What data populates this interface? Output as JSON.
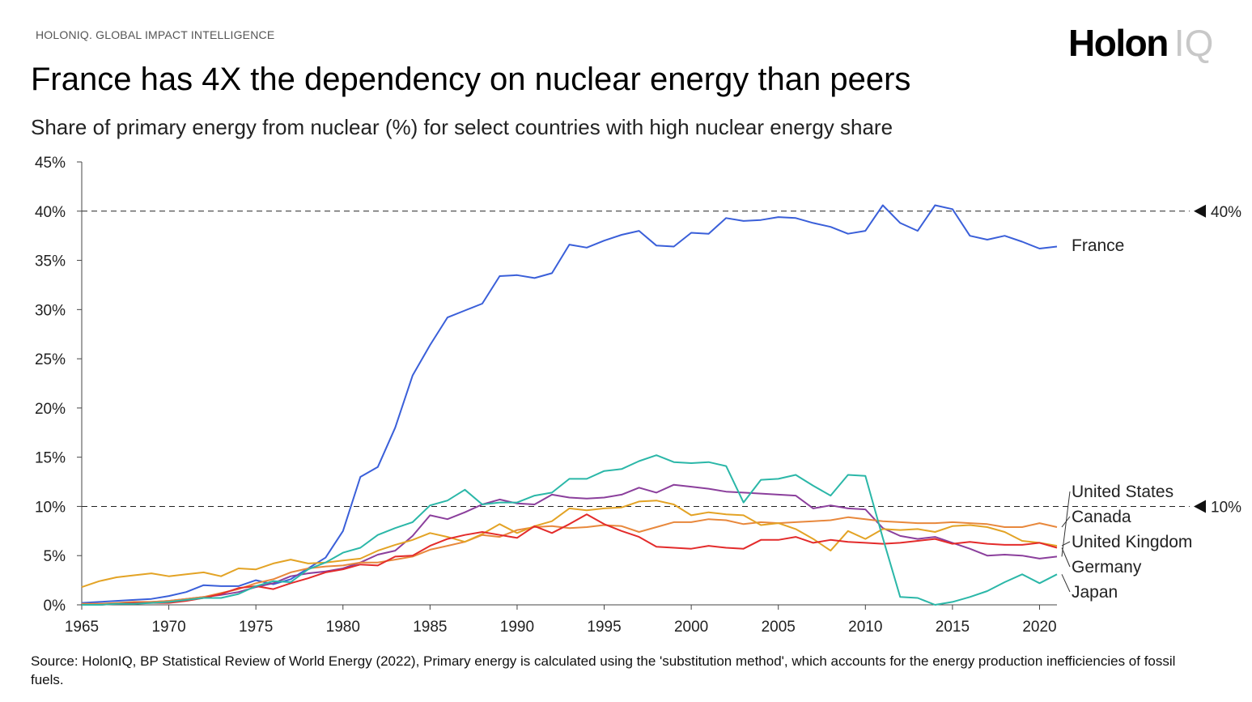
{
  "header": {
    "topline": "HOLONIQ. GLOBAL IMPACT INTELLIGENCE",
    "logo_main": "Holon",
    "logo_suffix": "IQ"
  },
  "footer": {
    "source": "Source: HolonIQ, BP Statistical Review of World Energy (2022), Primary energy is calculated using the 'substitution method', which accounts for the energy production inefficiencies of fossil fuels."
  },
  "chart_data": {
    "type": "line",
    "title": "France has 4X the dependency on nuclear energy than peers",
    "subtitle": "Share of primary energy from nuclear (%) for select countries with high nuclear energy share",
    "xlabel": "",
    "ylabel": "",
    "xlim": [
      1965,
      2021
    ],
    "ylim": [
      0,
      45
    ],
    "x_ticks": [
      "1965",
      "1970",
      "1975",
      "1980",
      "1985",
      "1990",
      "1995",
      "2000",
      "2005",
      "2010",
      "2015",
      "2020"
    ],
    "y_ticks": [
      "0%",
      "5%",
      "10%",
      "15%",
      "20%",
      "25%",
      "30%",
      "35%",
      "40%",
      "45%"
    ],
    "grid": false,
    "reference_lines": [
      {
        "value": 40,
        "label": "40%"
      },
      {
        "value": 10,
        "label": "10%"
      }
    ],
    "x": [
      1965,
      1966,
      1967,
      1968,
      1969,
      1970,
      1971,
      1972,
      1973,
      1974,
      1975,
      1976,
      1977,
      1978,
      1979,
      1980,
      1981,
      1982,
      1983,
      1984,
      1985,
      1986,
      1987,
      1988,
      1989,
      1990,
      1991,
      1992,
      1993,
      1994,
      1995,
      1996,
      1997,
      1998,
      1999,
      2000,
      2001,
      2002,
      2003,
      2004,
      2005,
      2006,
      2007,
      2008,
      2009,
      2010,
      2011,
      2012,
      2013,
      2014,
      2015,
      2016,
      2017,
      2018,
      2019,
      2020,
      2021
    ],
    "series": [
      {
        "name": "France",
        "color": "#3a5fd9",
        "values": [
          0.2,
          0.3,
          0.4,
          0.5,
          0.6,
          0.9,
          1.3,
          2.0,
          1.9,
          1.9,
          2.5,
          2.1,
          2.6,
          3.7,
          4.8,
          7.5,
          13.0,
          14.0,
          18.0,
          23.3,
          26.4,
          29.2,
          29.9,
          30.6,
          33.4,
          33.5,
          33.2,
          33.7,
          36.6,
          36.3,
          37.0,
          37.6,
          38.0,
          36.5,
          36.4,
          37.8,
          37.7,
          39.3,
          39.0,
          39.1,
          39.4,
          39.3,
          38.8,
          38.4,
          37.7,
          38.0,
          40.6,
          38.8,
          38.0,
          40.6,
          40.2,
          37.5,
          37.1,
          37.5,
          36.9,
          36.2,
          36.4
        ]
      },
      {
        "name": "United States",
        "color": "#8b3f9c",
        "values": [
          0.1,
          0.1,
          0.1,
          0.2,
          0.3,
          0.4,
          0.6,
          0.8,
          1.0,
          1.3,
          1.8,
          2.2,
          2.9,
          3.2,
          3.4,
          3.7,
          4.3,
          5.1,
          5.5,
          7.0,
          9.1,
          8.7,
          9.4,
          10.2,
          10.7,
          10.3,
          10.2,
          11.2,
          10.9,
          10.8,
          10.9,
          11.2,
          11.9,
          11.4,
          12.2,
          12.0,
          11.8,
          11.5,
          11.4,
          11.3,
          11.2,
          11.1,
          9.8,
          10.1,
          9.8,
          9.7,
          7.8,
          7.0,
          6.7,
          6.9,
          6.3,
          5.7,
          5.0,
          5.1,
          5.0,
          4.7,
          4.9
        ]
      },
      {
        "name": "Canada",
        "color": "#e8883c",
        "values": [
          0.1,
          0.1,
          0.2,
          0.3,
          0.3,
          0.4,
          0.6,
          0.8,
          1.2,
          1.6,
          2.2,
          2.6,
          3.3,
          3.7,
          3.9,
          4.0,
          4.3,
          4.3,
          4.6,
          4.9,
          5.6,
          6.0,
          6.4,
          7.1,
          6.9,
          7.6,
          7.9,
          8.0,
          7.8,
          7.9,
          8.1,
          8.0,
          7.4,
          7.9,
          8.4,
          8.4,
          8.7,
          8.6,
          8.2,
          8.4,
          8.3,
          8.4,
          8.5,
          8.6,
          8.9,
          8.7,
          8.5,
          8.4,
          8.3,
          8.3,
          8.4,
          8.3,
          8.2,
          7.9,
          7.9,
          8.3,
          7.9
        ]
      },
      {
        "name": "United Kingdom",
        "color": "#e3a325",
        "values": [
          1.8,
          2.4,
          2.8,
          3.0,
          3.2,
          2.9,
          3.1,
          3.3,
          2.9,
          3.7,
          3.6,
          4.2,
          4.6,
          4.2,
          4.3,
          4.5,
          4.7,
          5.5,
          6.1,
          6.6,
          7.3,
          6.9,
          6.4,
          7.2,
          8.2,
          7.3,
          8.0,
          8.5,
          9.8,
          9.6,
          9.8,
          9.9,
          10.5,
          10.6,
          10.2,
          9.1,
          9.4,
          9.2,
          9.1,
          8.1,
          8.3,
          7.7,
          6.7,
          5.5,
          7.5,
          6.7,
          7.7,
          7.6,
          7.7,
          7.4,
          8.0,
          8.1,
          7.9,
          7.4,
          6.5,
          6.3,
          6.0
        ]
      },
      {
        "name": "Germany",
        "color": "#e32b2b",
        "values": [
          0.0,
          0.0,
          0.1,
          0.2,
          0.2,
          0.2,
          0.4,
          0.7,
          1.1,
          1.7,
          1.9,
          1.6,
          2.2,
          2.7,
          3.3,
          3.6,
          4.1,
          4.0,
          4.9,
          5.0,
          6.0,
          6.7,
          7.1,
          7.4,
          7.1,
          6.8,
          8.0,
          7.3,
          8.2,
          9.2,
          8.2,
          7.5,
          6.9,
          5.9,
          5.8,
          5.7,
          6.0,
          5.8,
          5.7,
          6.6,
          6.6,
          6.9,
          6.3,
          6.6,
          6.4,
          6.3,
          6.2,
          6.3,
          6.5,
          6.7,
          6.2,
          6.4,
          6.2,
          6.1,
          6.1,
          6.3,
          5.8
        ]
      },
      {
        "name": "Japan",
        "color": "#2bb7a8",
        "values": [
          0.0,
          0.0,
          0.1,
          0.1,
          0.2,
          0.3,
          0.5,
          0.7,
          0.7,
          1.1,
          1.9,
          2.4,
          2.3,
          3.6,
          4.3,
          5.3,
          5.8,
          7.1,
          7.8,
          8.4,
          10.1,
          10.6,
          11.7,
          10.2,
          10.4,
          10.4,
          11.1,
          11.4,
          12.8,
          12.8,
          13.6,
          13.8,
          14.6,
          15.2,
          14.5,
          14.4,
          14.5,
          14.1,
          10.4,
          12.7,
          12.8,
          13.2,
          12.1,
          11.1,
          13.2,
          13.1,
          6.8,
          0.8,
          0.7,
          0.0,
          0.3,
          0.8,
          1.4,
          2.3,
          3.1,
          2.2,
          3.1
        ]
      }
    ]
  }
}
